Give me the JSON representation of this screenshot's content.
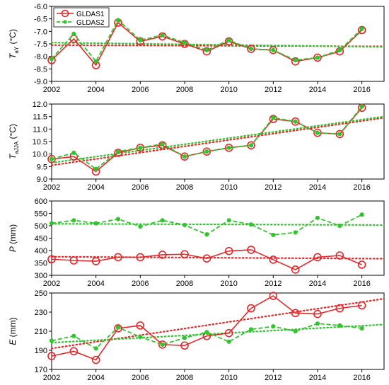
{
  "colors": {
    "gldas1": "#e8262a",
    "gldas2": "#31c42e"
  },
  "legend": {
    "gldas1": "GLDAS1",
    "gldas2": "GLDAS2"
  },
  "chart_data": [
    {
      "type": "line",
      "ylabel": {
        "main": "T",
        "sub": "aY",
        "unit": " (°C)"
      },
      "ylim": [
        -9.0,
        -6.0
      ],
      "yticks": [
        "-6.0",
        "-6.5",
        "-7.0",
        "-7.5",
        "-8.0",
        "-8.5",
        "-9.0"
      ],
      "xlim": [
        2002,
        2017
      ],
      "xticks": [
        "2002",
        "2004",
        "2006",
        "2008",
        "2010",
        "2012",
        "2014",
        "2016"
      ],
      "legend_position": "top-left",
      "series": [
        {
          "name": "GLDAS1",
          "x": [
            2002,
            2003,
            2004,
            2005,
            2006,
            2007,
            2008,
            2009,
            2010,
            2011,
            2012,
            2013,
            2014,
            2015,
            2016
          ],
          "values": [
            -8.15,
            -7.3,
            -8.35,
            -6.65,
            -7.4,
            -7.2,
            -7.5,
            -7.8,
            -7.4,
            -7.7,
            -7.75,
            -8.2,
            -8.05,
            -7.8,
            -6.95
          ]
        },
        {
          "name": "GLDAS2",
          "x": [
            2002,
            2003,
            2004,
            2005,
            2006,
            2007,
            2008,
            2009,
            2010,
            2011,
            2012,
            2013,
            2014,
            2015,
            2016
          ],
          "values": [
            -8.1,
            -7.1,
            -8.2,
            -6.55,
            -7.35,
            -7.15,
            -7.45,
            -7.75,
            -7.35,
            -7.7,
            -7.75,
            -8.15,
            -8.05,
            -7.75,
            -6.9
          ]
        }
      ],
      "trend": [
        {
          "series": "GLDAS1",
          "x": [
            2002,
            2017
          ],
          "y": [
            -7.55,
            -7.6
          ]
        },
        {
          "series": "GLDAS2",
          "x": [
            2002,
            2017
          ],
          "y": [
            -7.45,
            -7.62
          ]
        }
      ]
    },
    {
      "type": "line",
      "ylabel": {
        "main": "T",
        "sub": "aJJA",
        "unit": " (°C)"
      },
      "ylim": [
        9.0,
        12.0
      ],
      "yticks": [
        "12.0",
        "11.5",
        "11.0",
        "10.5",
        "10.0",
        "9.5",
        "9.0"
      ],
      "xlim": [
        2002,
        2017
      ],
      "xticks": [
        "2002",
        "2004",
        "2006",
        "2008",
        "2010",
        "2012",
        "2014",
        "2016"
      ],
      "series": [
        {
          "name": "GLDAS1",
          "x": [
            2002,
            2003,
            2004,
            2005,
            2006,
            2007,
            2008,
            2009,
            2010,
            2011,
            2012,
            2013,
            2014,
            2015,
            2016
          ],
          "values": [
            9.8,
            9.9,
            9.3,
            10.05,
            10.25,
            10.35,
            9.9,
            10.1,
            10.25,
            10.35,
            11.4,
            11.3,
            10.85,
            10.8,
            11.85
          ]
        },
        {
          "name": "GLDAS2",
          "x": [
            2002,
            2003,
            2004,
            2005,
            2006,
            2007,
            2008,
            2009,
            2010,
            2011,
            2012,
            2013,
            2014,
            2015,
            2016
          ],
          "values": [
            9.8,
            10.05,
            9.4,
            10.1,
            10.25,
            10.4,
            9.9,
            10.1,
            10.25,
            10.35,
            11.45,
            11.3,
            10.85,
            10.8,
            11.9
          ]
        }
      ],
      "trend": [
        {
          "series": "GLDAS1",
          "x": [
            2002,
            2017
          ],
          "y": [
            9.55,
            11.45
          ]
        },
        {
          "series": "GLDAS2",
          "x": [
            2002,
            2017
          ],
          "y": [
            9.65,
            11.5
          ]
        }
      ]
    },
    {
      "type": "line",
      "ylabel": {
        "main": "P",
        "sub": "",
        "unit": " (mm)"
      },
      "ylim": [
        300,
        600
      ],
      "yticks": [
        "600",
        "550",
        "500",
        "450",
        "400",
        "350",
        "300"
      ],
      "xlim": [
        2002,
        2017
      ],
      "xticks": [
        "2002",
        "2004",
        "2006",
        "2008",
        "2010",
        "2012",
        "2014",
        "2016"
      ],
      "series": [
        {
          "name": "GLDAS1",
          "x": [
            2002,
            2003,
            2004,
            2005,
            2006,
            2007,
            2008,
            2009,
            2010,
            2011,
            2012,
            2013,
            2014,
            2015,
            2016
          ],
          "values": [
            365,
            360,
            357,
            373,
            373,
            383,
            385,
            368,
            398,
            403,
            363,
            323,
            373,
            380,
            343
          ]
        },
        {
          "name": "GLDAS2",
          "x": [
            2002,
            2003,
            2004,
            2005,
            2006,
            2007,
            2008,
            2009,
            2010,
            2011,
            2012,
            2013,
            2014,
            2015,
            2016
          ],
          "values": [
            510,
            522,
            510,
            527,
            497,
            522,
            503,
            465,
            522,
            505,
            463,
            473,
            532,
            500,
            545
          ]
        }
      ],
      "trend": [
        {
          "series": "GLDAS1",
          "x": [
            2002,
            2017
          ],
          "y": [
            375,
            367
          ]
        },
        {
          "series": "GLDAS2",
          "x": [
            2002,
            2017
          ],
          "y": [
            508,
            503
          ]
        }
      ]
    },
    {
      "type": "line",
      "ylabel": {
        "main": "E",
        "sub": "",
        "unit": " (mm)"
      },
      "ylim": [
        170,
        250
      ],
      "yticks": [
        "250",
        "230",
        "210",
        "190",
        "170"
      ],
      "xlim": [
        2002,
        2017
      ],
      "xticks": [
        "2002",
        "2004",
        "2006",
        "2008",
        "2010",
        "2012",
        "2014",
        "2016"
      ],
      "series": [
        {
          "name": "GLDAS1",
          "x": [
            2002,
            2003,
            2004,
            2005,
            2006,
            2007,
            2008,
            2009,
            2010,
            2011,
            2012,
            2013,
            2014,
            2015,
            2016
          ],
          "values": [
            184,
            189,
            180,
            213,
            216,
            196,
            195,
            205,
            208,
            234,
            247,
            229,
            228,
            234,
            237
          ]
        },
        {
          "name": "GLDAS2",
          "x": [
            2002,
            2003,
            2004,
            2005,
            2006,
            2007,
            2008,
            2009,
            2010,
            2011,
            2012,
            2013,
            2014,
            2015,
            2016
          ],
          "values": [
            200,
            205,
            192,
            214,
            204,
            196,
            203,
            209,
            199,
            212,
            215,
            210,
            218,
            216,
            213
          ]
        }
      ],
      "trend": [
        {
          "series": "GLDAS1",
          "x": [
            2002,
            2017
          ],
          "y": [
            192,
            244
          ]
        },
        {
          "series": "GLDAS2",
          "x": [
            2002,
            2017
          ],
          "y": [
            198,
            217
          ]
        }
      ]
    }
  ]
}
